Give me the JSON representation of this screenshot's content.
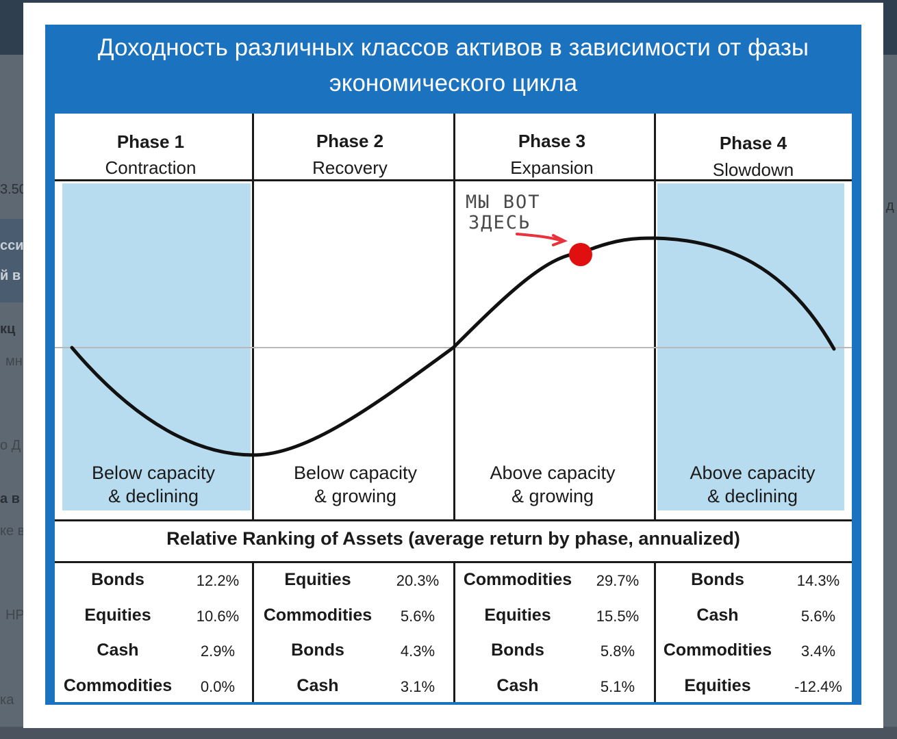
{
  "title": "Доходность различных классов активов в зависимости от фазы экономического цикла",
  "phases": [
    {
      "number": "Phase 1",
      "name": "Contraction",
      "capacity_line1": "Below capacity",
      "capacity_line2": "& declining",
      "shaded": true
    },
    {
      "number": "Phase 2",
      "name": "Recovery",
      "capacity_line1": "Below capacity",
      "capacity_line2": "& growing",
      "shaded": false
    },
    {
      "number": "Phase 3",
      "name": "Expansion",
      "capacity_line1": "Above capacity",
      "capacity_line2": "& growing",
      "shaded": false
    },
    {
      "number": "Phase 4",
      "name": "Slowdown",
      "capacity_line1": "Above capacity",
      "capacity_line2": "& declining",
      "shaded": true
    }
  ],
  "ranking_title": "Relative Ranking of Assets (average return by phase, annualized)",
  "rankings": [
    [
      {
        "asset": "Bonds",
        "return": "12.2%"
      },
      {
        "asset": "Equities",
        "return": "10.6%"
      },
      {
        "asset": "Cash",
        "return": "2.9%"
      },
      {
        "asset": "Commodities",
        "return": "0.0%"
      }
    ],
    [
      {
        "asset": "Equities",
        "return": "20.3%"
      },
      {
        "asset": "Commodities",
        "return": "5.6%"
      },
      {
        "asset": "Bonds",
        "return": "4.3%"
      },
      {
        "asset": "Cash",
        "return": "3.1%"
      }
    ],
    [
      {
        "asset": "Commodities",
        "return": "29.7%"
      },
      {
        "asset": "Equities",
        "return": "15.5%"
      },
      {
        "asset": "Bonds",
        "return": "5.8%"
      },
      {
        "asset": "Cash",
        "return": "5.1%"
      }
    ],
    [
      {
        "asset": "Bonds",
        "return": "14.3%"
      },
      {
        "asset": "Cash",
        "return": "5.6%"
      },
      {
        "asset": "Commodities",
        "return": "3.4%"
      },
      {
        "asset": "Equities",
        "return": "-12.4%"
      }
    ]
  ],
  "annotation": {
    "line1": "МЫ ВОТ",
    "line2": "ЗДЕСЬ"
  },
  "background_fragments": [
    "3.50",
    "сси",
    "й в",
    "кц",
    "мн",
    "о Д",
    "а в",
    "ке в",
    "НР",
    "ка",
    "д"
  ],
  "colors": {
    "header_blue": "#1b72bf",
    "shade_blue": "#b7dcef",
    "marker_red": "#e01010",
    "arrow_red": "#e8323c"
  }
}
